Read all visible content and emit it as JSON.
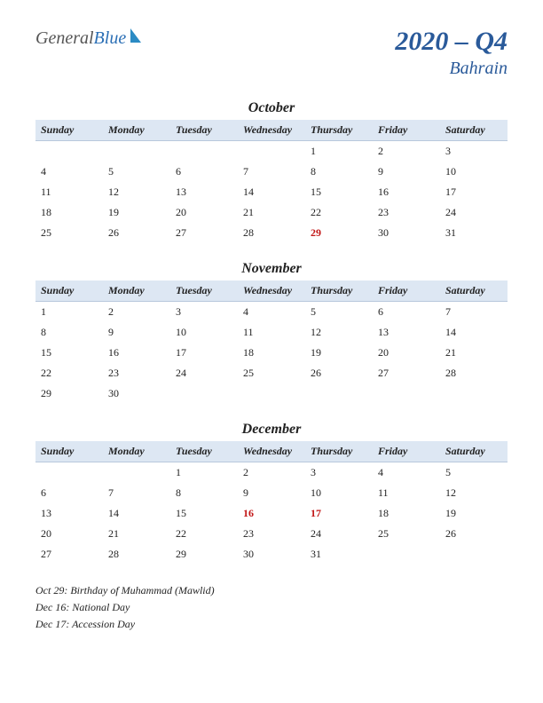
{
  "logo": {
    "text1": "General",
    "text2": "Blue",
    "icon_color": "#2b8bc4"
  },
  "title": "2020 – Q4",
  "subtitle": "Bahrain",
  "colors": {
    "header_bg": "#dde7f3",
    "header_border": "#b8c8dc",
    "title_color": "#2a5a9a",
    "holiday_color": "#c21818"
  },
  "day_headers": [
    "Sunday",
    "Monday",
    "Tuesday",
    "Wednesday",
    "Thursday",
    "Friday",
    "Saturday"
  ],
  "months": [
    {
      "name": "October",
      "weeks": [
        [
          "",
          "",
          "",
          "",
          "1",
          "2",
          "3"
        ],
        [
          "4",
          "5",
          "6",
          "7",
          "8",
          "9",
          "10"
        ],
        [
          "11",
          "12",
          "13",
          "14",
          "15",
          "16",
          "17"
        ],
        [
          "18",
          "19",
          "20",
          "21",
          "22",
          "23",
          "24"
        ],
        [
          "25",
          "26",
          "27",
          "28",
          "29",
          "30",
          "31"
        ]
      ],
      "holidays": [
        "29"
      ]
    },
    {
      "name": "November",
      "weeks": [
        [
          "1",
          "2",
          "3",
          "4",
          "5",
          "6",
          "7"
        ],
        [
          "8",
          "9",
          "10",
          "11",
          "12",
          "13",
          "14"
        ],
        [
          "15",
          "16",
          "17",
          "18",
          "19",
          "20",
          "21"
        ],
        [
          "22",
          "23",
          "24",
          "25",
          "26",
          "27",
          "28"
        ],
        [
          "29",
          "30",
          "",
          "",
          "",
          "",
          ""
        ]
      ],
      "holidays": []
    },
    {
      "name": "December",
      "weeks": [
        [
          "",
          "",
          "1",
          "2",
          "3",
          "4",
          "5"
        ],
        [
          "6",
          "7",
          "8",
          "9",
          "10",
          "11",
          "12"
        ],
        [
          "13",
          "14",
          "15",
          "16",
          "17",
          "18",
          "19"
        ],
        [
          "20",
          "21",
          "22",
          "23",
          "24",
          "25",
          "26"
        ],
        [
          "27",
          "28",
          "29",
          "30",
          "31",
          "",
          ""
        ]
      ],
      "holidays": [
        "16",
        "17"
      ]
    }
  ],
  "holiday_list": [
    "Oct 29: Birthday of Muhammad (Mawlid)",
    "Dec 16: National Day",
    "Dec 17: Accession Day"
  ]
}
